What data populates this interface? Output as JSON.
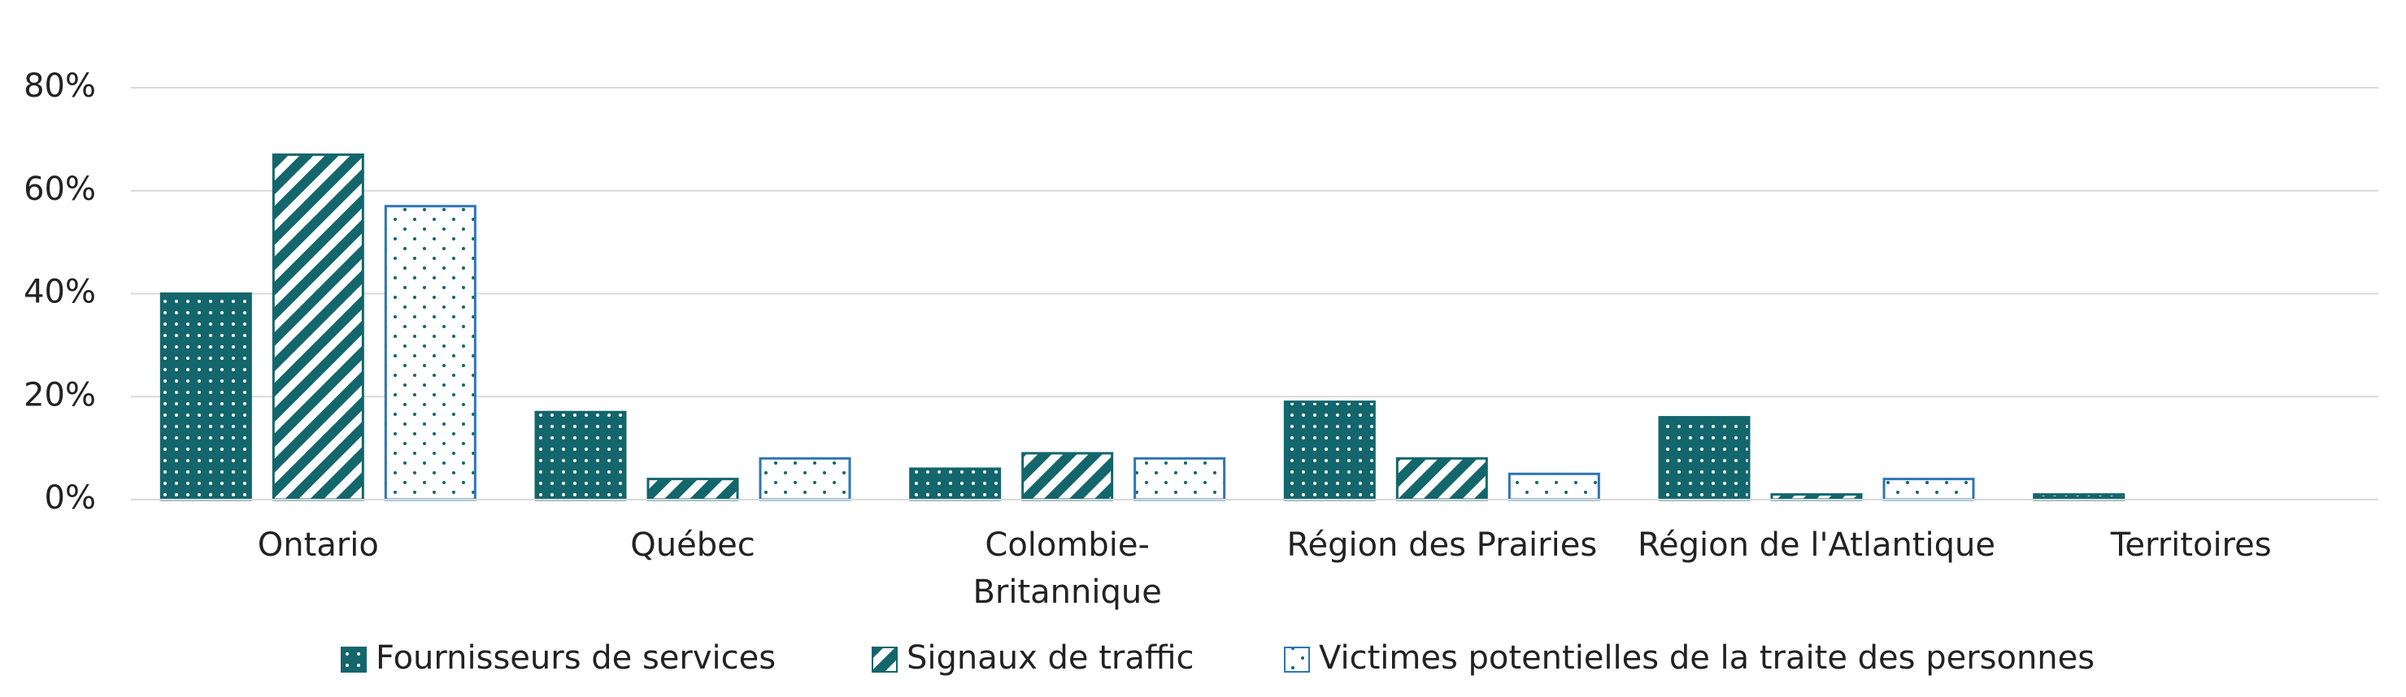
{
  "chart_data": {
    "type": "bar",
    "categories": [
      "Ontario",
      "Québec",
      "Colombie-Britannique",
      "Région des Prairies",
      "Région de l'Atlantique",
      "Territoires"
    ],
    "series": [
      {
        "name": "Fournisseurs de services",
        "color": "#12666c",
        "pattern": "dots",
        "values": [
          40,
          17,
          6,
          19,
          16,
          1
        ]
      },
      {
        "name": "Signaux de traffic",
        "color": "#12666c",
        "pattern": "stripes",
        "values": [
          67,
          4,
          9,
          8,
          1,
          0
        ]
      },
      {
        "name": "Victimes potentielles de la traite des personnes",
        "color": "#2e75b6",
        "pattern": "sparse-dots",
        "values": [
          57,
          8,
          8,
          5,
          4,
          0
        ]
      }
    ],
    "ylim": [
      0,
      80
    ],
    "yticks": [
      {
        "value": 0,
        "label": "0%"
      },
      {
        "value": 20,
        "label": "20%"
      },
      {
        "value": 40,
        "label": "40%"
      },
      {
        "value": 60,
        "label": "60%"
      },
      {
        "value": 80,
        "label": "80%"
      }
    ],
    "grid": true,
    "legend": "bottom"
  }
}
